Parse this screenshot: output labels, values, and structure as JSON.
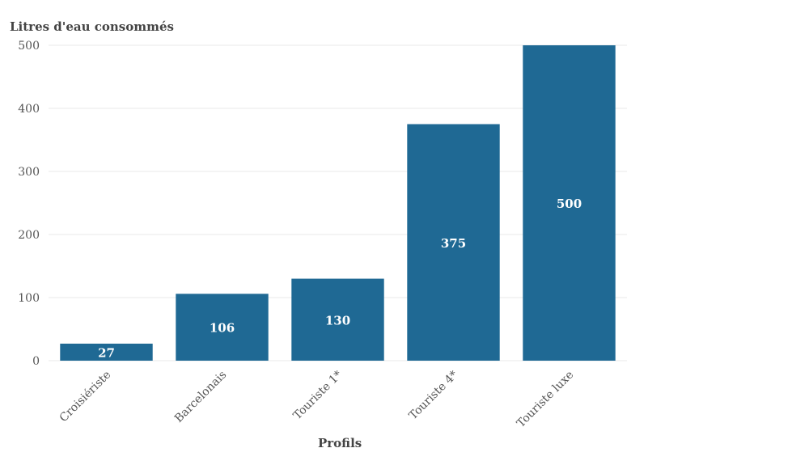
{
  "chart_data": {
    "type": "bar",
    "ylabel": "Litres d'eau consommés",
    "xlabel": "Profils",
    "categories": [
      "Croisiériste",
      "Barcelonais",
      "Touriste 1*",
      "Touriste 4*",
      "Touriste luxe"
    ],
    "values": [
      27,
      106,
      130,
      375,
      500
    ],
    "data_labels": [
      "27",
      "106",
      "130",
      "375",
      "500"
    ],
    "ylim": [
      0,
      500
    ],
    "yticks": [
      "0",
      "100",
      "200",
      "300",
      "400",
      "500"
    ],
    "grid": true,
    "legend": "none",
    "bar_color": "#1f6994",
    "label_color": "#ffffff"
  }
}
